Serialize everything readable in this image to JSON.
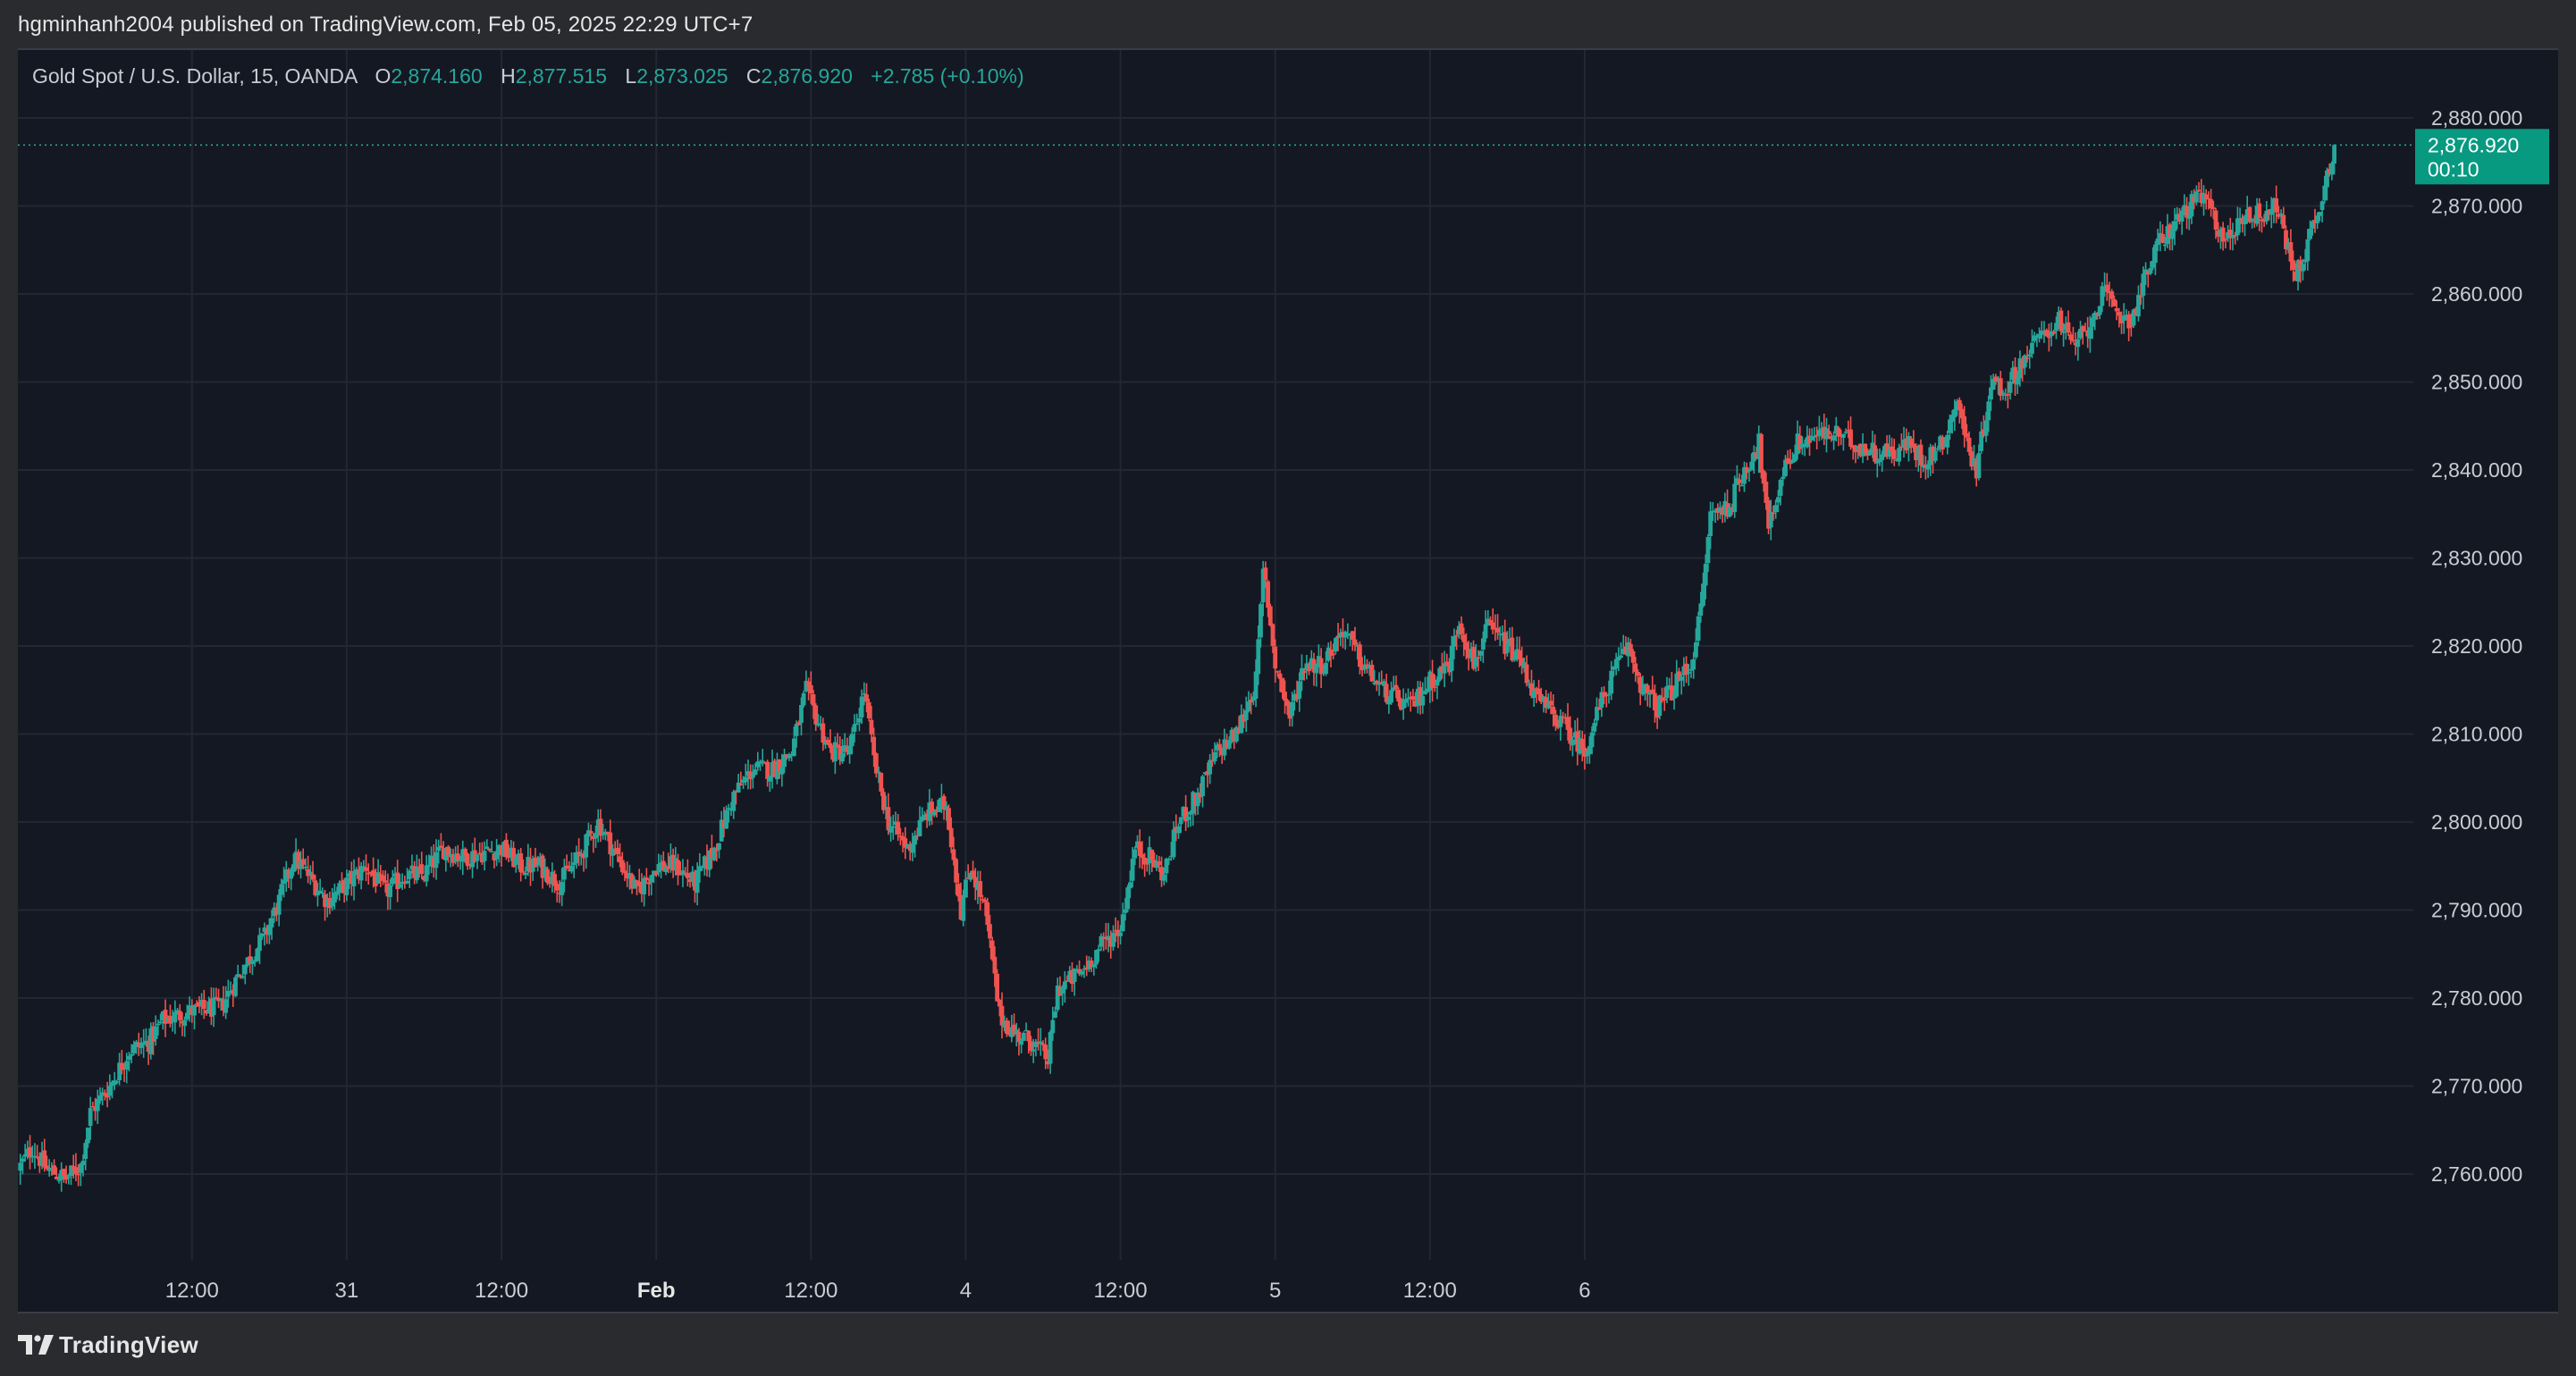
{
  "header": {
    "published_text": "hgminhanh2004 published on TradingView.com, Feb 05, 2025 22:29 UTC+7"
  },
  "legend": {
    "symbol": "Gold Spot / U.S. Dollar, 15, OANDA",
    "open_label": "O",
    "open_value": "2,874.160",
    "high_label": "H",
    "high_value": "2,877.515",
    "low_label": "L",
    "low_value": "2,873.025",
    "close_label": "C",
    "close_value": "2,876.920",
    "change": "+2.785 (+0.10%)"
  },
  "price_badge": {
    "price": "2,876.920",
    "countdown": "00:10"
  },
  "footer": {
    "brand": "TradingView"
  },
  "colors": {
    "background": "#141822",
    "up": "#26a69a",
    "down": "#ef5350",
    "grid": "#232733",
    "badge": "#089981"
  },
  "chart_data": {
    "type": "candlestick",
    "title": "Gold Spot / U.S. Dollar, 15, OANDA",
    "ylim": [
      2750,
      2883
    ],
    "y_ticks": [
      2760,
      2770,
      2780,
      2790,
      2800,
      2810,
      2820,
      2830,
      2840,
      2850,
      2860,
      2870,
      2880
    ],
    "y_tick_labels": [
      "2,760.000",
      "2,770.000",
      "2,780.000",
      "2,790.000",
      "2,800.000",
      "2,810.000",
      "2,820.000",
      "2,830.000",
      "2,840.000",
      "2,850.000",
      "2,860.000",
      "2,870.000",
      "2,880.000"
    ],
    "x_ticks": [
      {
        "label": "12:00",
        "bold": false
      },
      {
        "label": "31",
        "bold": false
      },
      {
        "label": "12:00",
        "bold": false
      },
      {
        "label": "Feb",
        "bold": true
      },
      {
        "label": "12:00",
        "bold": false
      },
      {
        "label": "4",
        "bold": false
      },
      {
        "label": "12:00",
        "bold": false
      },
      {
        "label": "5",
        "bold": false
      },
      {
        "label": "12:00",
        "bold": false
      },
      {
        "label": "6",
        "bold": false
      }
    ],
    "x_tick_positions": [
      -16,
      0,
      16,
      32,
      48,
      64,
      80,
      96,
      112,
      128
    ],
    "x_unit": "hours from Jan 31 00:00",
    "last_price": 2876.92,
    "close_path": [
      [
        -34,
        2760.5
      ],
      [
        -32.5,
        2763
      ],
      [
        -31,
        2760.5
      ],
      [
        -29,
        2759.5
      ],
      [
        -27.5,
        2761
      ],
      [
        -26.5,
        2767
      ],
      [
        -24.5,
        2770
      ],
      [
        -22.5,
        2774
      ],
      [
        -20.5,
        2775
      ],
      [
        -19,
        2777.5
      ],
      [
        -16,
        2778.5
      ],
      [
        -13,
        2779
      ],
      [
        -11,
        2783
      ],
      [
        -8.5,
        2787
      ],
      [
        -7,
        2791
      ],
      [
        -5.5,
        2796
      ],
      [
        -4,
        2794
      ],
      [
        -2,
        2791
      ],
      [
        0,
        2793
      ],
      [
        2,
        2795
      ],
      [
        4,
        2792
      ],
      [
        6,
        2794
      ],
      [
        8,
        2794
      ],
      [
        10,
        2797
      ],
      [
        12,
        2796
      ],
      [
        14,
        2796.5
      ],
      [
        16,
        2797
      ],
      [
        18,
        2795
      ],
      [
        20,
        2795
      ],
      [
        22,
        2793
      ],
      [
        24,
        2796
      ],
      [
        26,
        2800
      ],
      [
        28,
        2796
      ],
      [
        30,
        2792
      ],
      [
        32,
        2795
      ],
      [
        34,
        2795
      ],
      [
        36,
        2793
      ],
      [
        38,
        2797
      ],
      [
        40,
        2803
      ],
      [
        42,
        2806
      ],
      [
        44,
        2806
      ],
      [
        46,
        2808
      ],
      [
        47.5,
        2815
      ],
      [
        48.5,
        2812
      ],
      [
        50,
        2808
      ],
      [
        52,
        2808
      ],
      [
        53.5,
        2815
      ],
      [
        54.5,
        2807
      ],
      [
        56,
        2800
      ],
      [
        58,
        2797
      ],
      [
        60,
        2801
      ],
      [
        62,
        2802
      ],
      [
        63.5,
        2790
      ],
      [
        64.5,
        2795
      ],
      [
        66,
        2790
      ],
      [
        67.5,
        2778
      ],
      [
        69,
        2776
      ],
      [
        71,
        2775
      ],
      [
        72.5,
        2773
      ],
      [
        73.5,
        2781
      ],
      [
        76,
        2783
      ],
      [
        78,
        2786
      ],
      [
        80,
        2788
      ],
      [
        81.5,
        2797
      ],
      [
        83,
        2796
      ],
      [
        84.5,
        2794
      ],
      [
        86,
        2800
      ],
      [
        88,
        2803
      ],
      [
        90,
        2808
      ],
      [
        92,
        2810
      ],
      [
        94,
        2816
      ],
      [
        94.8,
        2829
      ],
      [
        96,
        2818
      ],
      [
        97.5,
        2812
      ],
      [
        99,
        2818
      ],
      [
        101,
        2818
      ],
      [
        103,
        2822
      ],
      [
        105,
        2818
      ],
      [
        107,
        2815
      ],
      [
        108.5,
        2814
      ],
      [
        110,
        2813
      ],
      [
        112,
        2816
      ],
      [
        114,
        2818
      ],
      [
        115,
        2823
      ],
      [
        116.5,
        2818
      ],
      [
        118,
        2822
      ],
      [
        120,
        2820
      ],
      [
        121.5,
        2818
      ],
      [
        123,
        2814
      ],
      [
        125,
        2812
      ],
      [
        126.5,
        2810
      ],
      [
        128,
        2808
      ],
      [
        129.5,
        2813
      ],
      [
        131,
        2817
      ],
      [
        132.5,
        2820
      ],
      [
        134,
        2815
      ],
      [
        135.5,
        2813
      ],
      [
        137,
        2815
      ],
      [
        139,
        2818
      ],
      [
        140,
        2824
      ],
      [
        141,
        2835
      ],
      [
        143,
        2836
      ],
      [
        144.5,
        2840
      ],
      [
        146,
        2843
      ],
      [
        147,
        2833
      ],
      [
        148.5,
        2840
      ],
      [
        150,
        2843
      ],
      [
        152,
        2844
      ],
      [
        154,
        2844
      ],
      [
        156,
        2843
      ],
      [
        158,
        2842
      ],
      [
        160,
        2842
      ],
      [
        161.5,
        2843
      ],
      [
        163,
        2841
      ],
      [
        165,
        2843
      ],
      [
        166.5,
        2848
      ],
      [
        167.5,
        2843
      ],
      [
        168.5,
        2840
      ],
      [
        170,
        2850
      ],
      [
        171.5,
        2849
      ],
      [
        173,
        2852
      ],
      [
        175,
        2855
      ],
      [
        177,
        2857
      ],
      [
        178.5,
        2854
      ],
      [
        180,
        2856
      ],
      [
        181.5,
        2860
      ],
      [
        183,
        2858
      ],
      [
        184.5,
        2857
      ],
      [
        186,
        2862
      ],
      [
        187.5,
        2866
      ],
      [
        189,
        2868
      ],
      [
        190.5,
        2870
      ],
      [
        192,
        2871
      ],
      [
        193.3,
        2868
      ],
      [
        194.5,
        2866
      ],
      [
        196,
        2869
      ],
      [
        198,
        2869
      ],
      [
        199.5,
        2870
      ],
      [
        200.5,
        2866
      ],
      [
        201.5,
        2862
      ],
      [
        202.5,
        2865
      ],
      [
        204,
        2870
      ],
      [
        205.5,
        2876.92
      ]
    ],
    "annotations": {
      "hover_line_price": 2876.92,
      "countdown": "00:10"
    }
  }
}
